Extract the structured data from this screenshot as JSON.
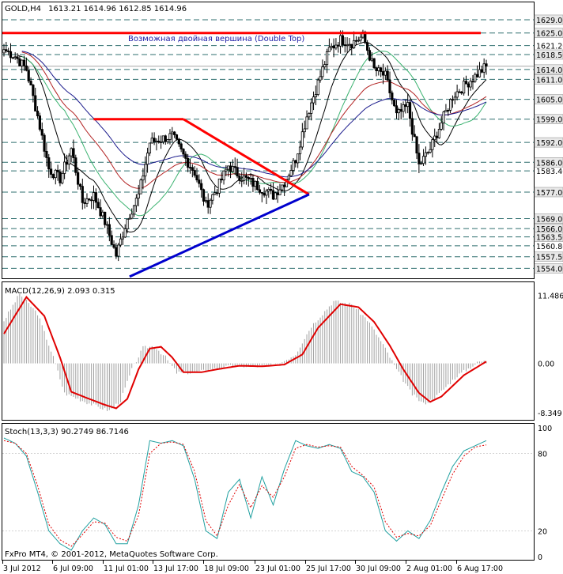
{
  "header": {
    "symbol": "GOLD,H4",
    "ohlc": "1613.21 1614.96 1612.85 1614.96"
  },
  "annotation": "Возможная двойная вершина (Double Top)",
  "copyright": "FxPro MT4, © 2001-2012, MetaQuotes Software Corp.",
  "colors": {
    "price": "#000000",
    "ma_fast": "#000000",
    "ma_green": "#3cb371",
    "ma_red": "#b22222",
    "ma_navy": "#1a1a8c",
    "resistance": "#ff0000",
    "support": "#0000cd",
    "macd_signal": "#e00000",
    "macd_hist": "#a0a0a0",
    "stoch_main": "#20a0a0",
    "stoch_signal": "#e00000",
    "grid": "#2f6f6f"
  },
  "chart_data": [
    {
      "type": "line",
      "subtype": "candlestick",
      "name": "GOLD,H4",
      "ylim": [
        1551,
        1634
      ],
      "price_levels": [
        1629.0,
        1625.0,
        1621.2,
        1618.5,
        1614.0,
        1611.0,
        1605.0,
        1599.0,
        1592.0,
        1586.0,
        1583.4,
        1577.0,
        1569.0,
        1566.0,
        1563.5,
        1560.8,
        1557.5,
        1554.0
      ],
      "current_price": "1614.96",
      "x_tick_labels": [
        "3 Jul 2012",
        "6 Jul 09:00",
        "11 Jul 01:00",
        "13 Jul 17:00",
        "18 Jul 09:00",
        "23 Jul 01:00",
        "25 Jul 17:00",
        "30 Jul 09:00",
        "2 Aug 01:00",
        "6 Aug 17:00"
      ],
      "close_anchors": [
        [
          0,
          1620
        ],
        [
          5,
          1618
        ],
        [
          10,
          1614
        ],
        [
          15,
          1600
        ],
        [
          20,
          1584
        ],
        [
          25,
          1581
        ],
        [
          30,
          1590
        ],
        [
          35,
          1574
        ],
        [
          40,
          1576
        ],
        [
          45,
          1568
        ],
        [
          50,
          1558
        ],
        [
          55,
          1569
        ],
        [
          60,
          1576
        ],
        [
          65,
          1592
        ],
        [
          70,
          1593
        ],
        [
          75,
          1594
        ],
        [
          80,
          1588
        ],
        [
          85,
          1583
        ],
        [
          90,
          1573
        ],
        [
          95,
          1578
        ],
        [
          100,
          1585
        ],
        [
          105,
          1582
        ],
        [
          110,
          1580
        ],
        [
          115,
          1578
        ],
        [
          120,
          1576
        ],
        [
          125,
          1580
        ],
        [
          130,
          1587
        ],
        [
          135,
          1600
        ],
        [
          140,
          1610
        ],
        [
          145,
          1620
        ],
        [
          150,
          1623
        ],
        [
          155,
          1622
        ],
        [
          160,
          1624
        ],
        [
          165,
          1614
        ],
        [
          170,
          1612
        ],
        [
          175,
          1600
        ],
        [
          180,
          1603
        ],
        [
          185,
          1585
        ],
        [
          190,
          1590
        ],
        [
          195,
          1598
        ],
        [
          200,
          1606
        ],
        [
          205,
          1609
        ],
        [
          210,
          1612
        ],
        [
          215,
          1615
        ]
      ],
      "resistance_line": {
        "price": 1625.0
      },
      "triangle": {
        "upper": [
          [
            1599,
            1599
          ],
          [
            1599,
            1576
          ]
        ],
        "lower": [
          [
            1551,
            1576
          ]
        ]
      }
    },
    {
      "type": "line",
      "name": "MACD(12,26,9) 2.093 0.315",
      "ylim": [
        -9.0,
        12.5
      ],
      "y_tick_labels": [
        "11.486",
        "0.00",
        "-8.349"
      ],
      "signal_anchors": [
        [
          0,
          5.0
        ],
        [
          10,
          11.2
        ],
        [
          18,
          8.0
        ],
        [
          25,
          1.0
        ],
        [
          30,
          -4.8
        ],
        [
          38,
          -6.0
        ],
        [
          45,
          -7.0
        ],
        [
          50,
          -7.6
        ],
        [
          55,
          -6.0
        ],
        [
          60,
          -1.0
        ],
        [
          65,
          2.5
        ],
        [
          70,
          2.8
        ],
        [
          75,
          1.0
        ],
        [
          80,
          -1.5
        ],
        [
          88,
          -1.5
        ],
        [
          95,
          -1.0
        ],
        [
          105,
          -0.4
        ],
        [
          115,
          -0.5
        ],
        [
          125,
          -0.2
        ],
        [
          133,
          1.5
        ],
        [
          140,
          6.0
        ],
        [
          150,
          10.0
        ],
        [
          158,
          9.5
        ],
        [
          165,
          7.0
        ],
        [
          172,
          3.0
        ],
        [
          178,
          -1.0
        ],
        [
          185,
          -5.0
        ],
        [
          190,
          -6.5
        ],
        [
          195,
          -5.6
        ],
        [
          205,
          -2.0
        ],
        [
          215,
          0.315
        ]
      ]
    },
    {
      "type": "line",
      "name": "Stoch(13,3,3) 90.2749 86.7146",
      "ylim": [
        0,
        100
      ],
      "y_tick_labels": [
        "100",
        "80",
        "20",
        "0"
      ],
      "main_anchors": [
        [
          0,
          92
        ],
        [
          5,
          88
        ],
        [
          10,
          78
        ],
        [
          15,
          50
        ],
        [
          20,
          20
        ],
        [
          25,
          10
        ],
        [
          30,
          5
        ],
        [
          35,
          20
        ],
        [
          40,
          30
        ],
        [
          45,
          25
        ],
        [
          50,
          10
        ],
        [
          55,
          10
        ],
        [
          60,
          40
        ],
        [
          65,
          90
        ],
        [
          70,
          88
        ],
        [
          75,
          90
        ],
        [
          80,
          86
        ],
        [
          85,
          60
        ],
        [
          90,
          20
        ],
        [
          95,
          14
        ],
        [
          100,
          50
        ],
        [
          105,
          60
        ],
        [
          110,
          30
        ],
        [
          115,
          62
        ],
        [
          120,
          40
        ],
        [
          125,
          68
        ],
        [
          130,
          90
        ],
        [
          135,
          86
        ],
        [
          140,
          84
        ],
        [
          145,
          87
        ],
        [
          150,
          84
        ],
        [
          155,
          66
        ],
        [
          160,
          62
        ],
        [
          165,
          50
        ],
        [
          170,
          20
        ],
        [
          175,
          12
        ],
        [
          180,
          20
        ],
        [
          185,
          14
        ],
        [
          190,
          28
        ],
        [
          195,
          50
        ],
        [
          200,
          70
        ],
        [
          205,
          82
        ],
        [
          210,
          86
        ],
        [
          215,
          90
        ]
      ],
      "signal_anchors": [
        [
          0,
          90
        ],
        [
          5,
          88
        ],
        [
          10,
          80
        ],
        [
          15,
          55
        ],
        [
          20,
          25
        ],
        [
          25,
          13
        ],
        [
          30,
          8
        ],
        [
          35,
          17
        ],
        [
          40,
          27
        ],
        [
          45,
          26
        ],
        [
          50,
          15
        ],
        [
          55,
          12
        ],
        [
          60,
          32
        ],
        [
          65,
          80
        ],
        [
          70,
          88
        ],
        [
          75,
          89
        ],
        [
          80,
          87
        ],
        [
          85,
          66
        ],
        [
          90,
          28
        ],
        [
          95,
          16
        ],
        [
          100,
          40
        ],
        [
          105,
          56
        ],
        [
          110,
          38
        ],
        [
          115,
          55
        ],
        [
          120,
          46
        ],
        [
          125,
          62
        ],
        [
          130,
          84
        ],
        [
          135,
          87
        ],
        [
          140,
          85
        ],
        [
          145,
          86
        ],
        [
          150,
          85
        ],
        [
          155,
          70
        ],
        [
          160,
          63
        ],
        [
          165,
          54
        ],
        [
          170,
          27
        ],
        [
          175,
          15
        ],
        [
          180,
          18
        ],
        [
          185,
          16
        ],
        [
          190,
          24
        ],
        [
          195,
          44
        ],
        [
          200,
          64
        ],
        [
          205,
          78
        ],
        [
          210,
          85
        ],
        [
          215,
          86.7
        ]
      ]
    }
  ]
}
